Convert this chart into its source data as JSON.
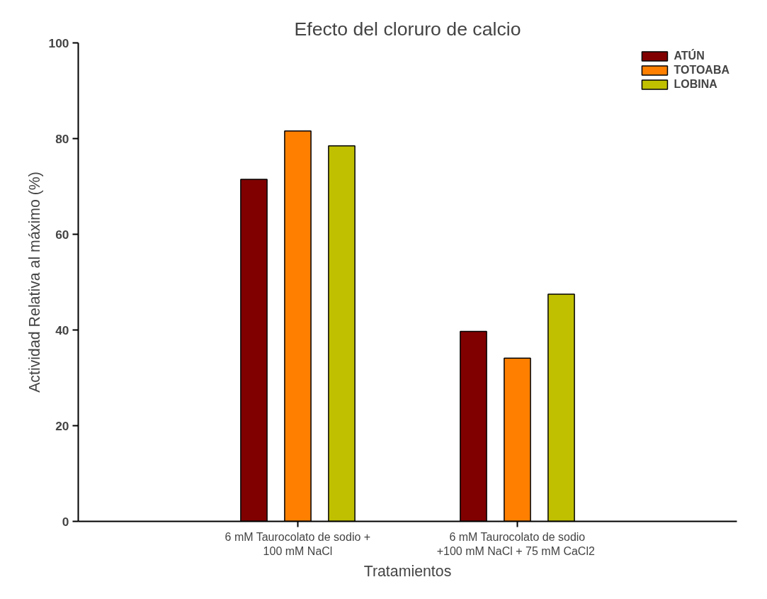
{
  "chart_data": {
    "type": "bar",
    "title": "Efecto del cloruro de calcio",
    "xlabel": "Tratamientos",
    "ylabel": "Actividad Relativa al máximo (%)",
    "categories": [
      "6 mM Taurocolato de sodio + 100 mM NaCl",
      "6 mM Taurocolato de sodio +100 mM  NaCl + 75 mM CaCl2"
    ],
    "series": [
      {
        "name": "ATÚN",
        "color": "#800000",
        "values": [
          71.5,
          39.7
        ]
      },
      {
        "name": "TOTOABA",
        "color": "#ff8000",
        "values": [
          81.6,
          34.1
        ]
      },
      {
        "name": "LOBINA",
        "color": "#c0c000",
        "values": [
          78.5,
          47.5
        ]
      }
    ],
    "ylim": [
      0,
      100
    ],
    "yticks": [
      0,
      20,
      40,
      60,
      80,
      100
    ],
    "grid": false,
    "legend": "top right"
  }
}
